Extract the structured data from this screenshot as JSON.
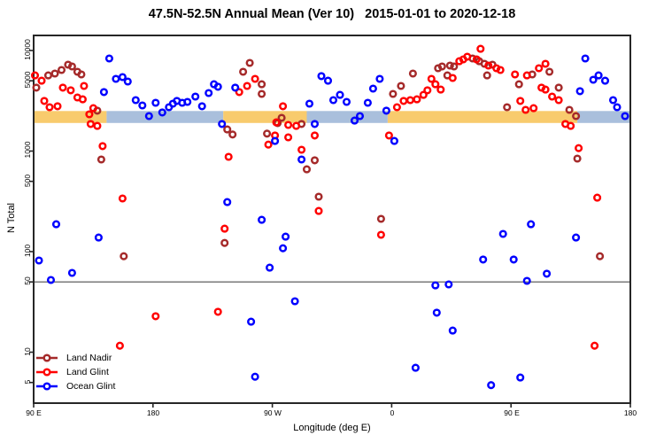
{
  "title": "47.5N-52.5N Annual Mean (Ver 10)   2015-01-01 to 2020-12-18",
  "axes": {
    "x_label": "Longitude (deg E)",
    "y_label": "N Total",
    "x_ticks": [
      "90 E",
      "180",
      "90 W",
      "0",
      "90 E",
      "180"
    ],
    "y_ticks": [
      "10000",
      "5000",
      "1000",
      "500",
      "100",
      "50",
      "10",
      "5"
    ]
  },
  "chart_data": {
    "type": "scatter",
    "title": "47.5N-52.5N Annual Mean (Ver 10)   2015-01-01 to 2020-12-18",
    "xlabel": "Longitude (deg E)",
    "ylabel": "N Total",
    "y_scale": "log",
    "ylim": [
      4,
      12000
    ],
    "x_axis_lon_range": [
      90,
      540
    ],
    "x_tick_lons": [
      90,
      180,
      270,
      360,
      450,
      540
    ],
    "y_tick_values": [
      10000,
      5000,
      1000,
      500,
      100,
      50,
      10,
      5
    ],
    "grid": false,
    "legend_position": "bottom-left",
    "reference_line_n": 50,
    "reference_line_color": "#7a7a7a",
    "surface_band": {
      "n_range": [
        1900,
        2500
      ],
      "colors": {
        "land": "#F8CB6D",
        "ocean": "#A9BFDC"
      },
      "segments": [
        {
          "from_lon": 90,
          "to_lon": 145,
          "type": "land"
        },
        {
          "from_lon": 145,
          "to_lon": 233,
          "type": "ocean"
        },
        {
          "from_lon": 233,
          "to_lon": 296,
          "type": "land"
        },
        {
          "from_lon": 296,
          "to_lon": 357,
          "type": "ocean"
        },
        {
          "from_lon": 357,
          "to_lon": 500,
          "type": "land"
        },
        {
          "from_lon": 500,
          "to_lon": 540,
          "type": "ocean"
        }
      ]
    },
    "series": [
      {
        "name": "Land Nadir",
        "color": "#A52A2A",
        "points": [
          [
            101,
            5660
          ],
          [
            106,
            5900
          ],
          [
            111,
            6400
          ],
          [
            116,
            7230
          ],
          [
            119,
            6940
          ],
          [
            123,
            6150
          ],
          [
            126,
            5780
          ],
          [
            92,
            4270
          ],
          [
            138,
            2520
          ],
          [
            141,
            824
          ],
          [
            236,
            1640
          ],
          [
            240,
            1460
          ],
          [
            253,
            7530
          ],
          [
            248,
            6150
          ],
          [
            262,
            4620
          ],
          [
            262,
            3700
          ],
          [
            274,
            1900
          ],
          [
            277,
            2140
          ],
          [
            292,
            1860
          ],
          [
            266,
            1490
          ],
          [
            296,
            659
          ],
          [
            302,
            809
          ],
          [
            376,
            5900
          ],
          [
            367,
            4440
          ],
          [
            361,
            3700
          ],
          [
            395,
            6660
          ],
          [
            398,
            6940
          ],
          [
            402,
            5660
          ],
          [
            404,
            7080
          ],
          [
            407,
            6940
          ],
          [
            421,
            8330
          ],
          [
            426,
            7830
          ],
          [
            430,
            7380
          ],
          [
            436,
            7230
          ],
          [
            432,
            5660
          ],
          [
            456,
            4620
          ],
          [
            466,
            5780
          ],
          [
            479,
            6150
          ],
          [
            486,
            4270
          ],
          [
            447,
            2730
          ],
          [
            494,
            2570
          ],
          [
            499,
            2230
          ],
          [
            500,
            841
          ],
          [
            158,
            90
          ],
          [
            234,
            122
          ],
          [
            305,
            352
          ],
          [
            352,
            212
          ],
          [
            517,
            90
          ]
        ]
      },
      {
        "name": "Land Glint",
        "color": "#FF0000",
        "points": [
          [
            91,
            5660
          ],
          [
            96,
            5010
          ],
          [
            112,
            4270
          ],
          [
            118,
            4020
          ],
          [
            128,
            4440
          ],
          [
            98,
            3150
          ],
          [
            102,
            2730
          ],
          [
            108,
            2790
          ],
          [
            123,
            3410
          ],
          [
            127,
            3270
          ],
          [
            132,
            2320
          ],
          [
            135,
            2670
          ],
          [
            133,
            1860
          ],
          [
            138,
            1780
          ],
          [
            142,
            1120
          ],
          [
            237,
            877
          ],
          [
            257,
            5220
          ],
          [
            251,
            4440
          ],
          [
            245,
            3860
          ],
          [
            278,
            2790
          ],
          [
            273,
            1930
          ],
          [
            282,
            1820
          ],
          [
            288,
            1780
          ],
          [
            272,
            1430
          ],
          [
            282,
            1370
          ],
          [
            267,
            1160
          ],
          [
            292,
            1030
          ],
          [
            302,
            1430
          ],
          [
            358,
            1430
          ],
          [
            364,
            2730
          ],
          [
            369,
            3150
          ],
          [
            374,
            3210
          ],
          [
            379,
            3270
          ],
          [
            384,
            3620
          ],
          [
            387,
            4020
          ],
          [
            411,
            7830
          ],
          [
            414,
            8160
          ],
          [
            417,
            8670
          ],
          [
            424,
            8160
          ],
          [
            427,
            10400
          ],
          [
            433,
            7080
          ],
          [
            439,
            6660
          ],
          [
            442,
            6400
          ],
          [
            390,
            5220
          ],
          [
            393,
            4620
          ],
          [
            397,
            4090
          ],
          [
            406,
            5330
          ],
          [
            453,
            5780
          ],
          [
            462,
            5660
          ],
          [
            471,
            6660
          ],
          [
            476,
            7380
          ],
          [
            473,
            4270
          ],
          [
            476,
            4090
          ],
          [
            481,
            3480
          ],
          [
            486,
            3210
          ],
          [
            457,
            3150
          ],
          [
            461,
            2570
          ],
          [
            467,
            2670
          ],
          [
            491,
            1860
          ],
          [
            495,
            1780
          ],
          [
            501,
            1070
          ],
          [
            157,
            338
          ],
          [
            155,
            11.6
          ],
          [
            182,
            22.8
          ],
          [
            234,
            169
          ],
          [
            229,
            25.2
          ],
          [
            305,
            254
          ],
          [
            352,
            147
          ],
          [
            515,
            344
          ],
          [
            513,
            11.6
          ]
        ]
      },
      {
        "name": "Ocean Glint",
        "color": "#0000FF",
        "points": [
          [
            147,
            8330
          ],
          [
            152,
            5220
          ],
          [
            157,
            5440
          ],
          [
            161,
            4920
          ],
          [
            143,
            3860
          ],
          [
            167,
            3210
          ],
          [
            172,
            2840
          ],
          [
            177,
            2230
          ],
          [
            182,
            3020
          ],
          [
            187,
            2420
          ],
          [
            192,
            2730
          ],
          [
            195,
            2960
          ],
          [
            198,
            3150
          ],
          [
            202,
            3020
          ],
          [
            206,
            3080
          ],
          [
            212,
            3480
          ],
          [
            217,
            2790
          ],
          [
            222,
            3780
          ],
          [
            226,
            4620
          ],
          [
            229,
            4360
          ],
          [
            232,
            1860
          ],
          [
            242,
            4270
          ],
          [
            307,
            5560
          ],
          [
            312,
            5010
          ],
          [
            316,
            3210
          ],
          [
            321,
            3620
          ],
          [
            326,
            3080
          ],
          [
            298,
            2960
          ],
          [
            302,
            1860
          ],
          [
            332,
            2010
          ],
          [
            336,
            2230
          ],
          [
            342,
            3020
          ],
          [
            346,
            4180
          ],
          [
            351,
            5220
          ],
          [
            356,
            2520
          ],
          [
            272,
            1260
          ],
          [
            292,
            824
          ],
          [
            362,
            1260
          ],
          [
            506,
            8330
          ],
          [
            512,
            5120
          ],
          [
            516,
            5660
          ],
          [
            521,
            5010
          ],
          [
            502,
            3940
          ],
          [
            527,
            3210
          ],
          [
            530,
            2730
          ],
          [
            536,
            2230
          ],
          [
            107,
            187
          ],
          [
            139,
            138
          ],
          [
            94,
            81.7
          ],
          [
            103,
            52.2
          ],
          [
            119,
            61.5
          ],
          [
            236,
            311
          ],
          [
            262,
            207
          ],
          [
            280,
            141
          ],
          [
            278,
            108
          ],
          [
            268,
            69.3
          ],
          [
            254,
            20.1
          ],
          [
            287,
            32.1
          ],
          [
            257,
            5.7
          ],
          [
            444,
            150
          ],
          [
            465,
            187
          ],
          [
            499,
            138
          ],
          [
            429,
            83.4
          ],
          [
            452,
            83.4
          ],
          [
            477,
            60.3
          ],
          [
            462,
            51.2
          ],
          [
            393,
            46.2
          ],
          [
            403,
            47.2
          ],
          [
            394,
            24.7
          ],
          [
            406,
            16.4
          ],
          [
            378,
            7.0
          ],
          [
            435,
            4.7
          ],
          [
            457,
            5.6
          ]
        ]
      }
    ]
  }
}
